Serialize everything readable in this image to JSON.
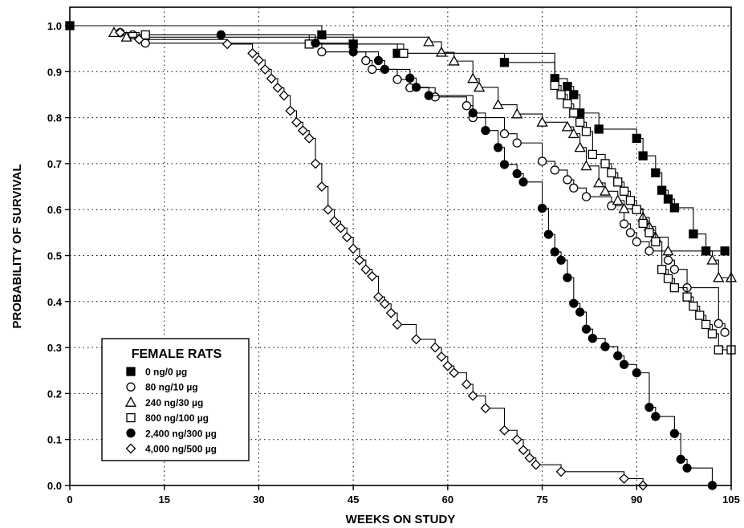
{
  "chart_data": {
    "type": "line",
    "step": true,
    "xlabel": "WEEKS ON STUDY",
    "ylabel": "PROBABILITY OF SURVIVAL",
    "xlim": [
      0,
      105
    ],
    "ylim": [
      0,
      1.0
    ],
    "xticks": [
      0,
      15,
      30,
      45,
      60,
      75,
      90,
      105
    ],
    "yticks": [
      0.0,
      0.1,
      0.2,
      0.3,
      0.4,
      0.5,
      0.6,
      0.7,
      0.8,
      0.9,
      1.0
    ],
    "ytick_labels": [
      "0.0",
      "0.1",
      "0.2",
      "0.3",
      "0.4",
      "0.5",
      "0.6",
      "0.7",
      "0.8",
      "0.9",
      "1.0"
    ],
    "grid": "dotted",
    "legend": {
      "title": "FEMALE RATS",
      "placement": "bottom-left"
    },
    "series": [
      {
        "name": "0 ng/0 µg",
        "marker": "square-filled",
        "points": [
          [
            0,
            1.0
          ],
          [
            40,
            0.98
          ],
          [
            45,
            0.96
          ],
          [
            52,
            0.94
          ],
          [
            69,
            0.92
          ],
          [
            77,
            0.885
          ],
          [
            79,
            0.868
          ],
          [
            80,
            0.85
          ],
          [
            81,
            0.81
          ],
          [
            84,
            0.775
          ],
          [
            90,
            0.755
          ],
          [
            91,
            0.717
          ],
          [
            93,
            0.68
          ],
          [
            94,
            0.642
          ],
          [
            95,
            0.623
          ],
          [
            96,
            0.604
          ],
          [
            99,
            0.547
          ],
          [
            101,
            0.51
          ],
          [
            104,
            0.51
          ]
        ]
      },
      {
        "name": "80 ng/10 µg",
        "marker": "circle-open",
        "points": [
          [
            8,
            0.985
          ],
          [
            10,
            0.98
          ],
          [
            12,
            0.962
          ],
          [
            40,
            0.943
          ],
          [
            47,
            0.924
          ],
          [
            48,
            0.905
          ],
          [
            52,
            0.883
          ],
          [
            54,
            0.865
          ],
          [
            58,
            0.845
          ],
          [
            63,
            0.826
          ],
          [
            64,
            0.8
          ],
          [
            69,
            0.765
          ],
          [
            71,
            0.745
          ],
          [
            75,
            0.705
          ],
          [
            77,
            0.686
          ],
          [
            79,
            0.665
          ],
          [
            80,
            0.647
          ],
          [
            82,
            0.628
          ],
          [
            86,
            0.608
          ],
          [
            88,
            0.569
          ],
          [
            89,
            0.55
          ],
          [
            90,
            0.53
          ],
          [
            92,
            0.51
          ],
          [
            95,
            0.49
          ],
          [
            96,
            0.47
          ],
          [
            98,
            0.43
          ],
          [
            103,
            0.352
          ],
          [
            104,
            0.333
          ]
        ]
      },
      {
        "name": "240 ng/30 µg",
        "marker": "triangle-open",
        "points": [
          [
            7,
            0.985
          ],
          [
            9,
            0.975
          ],
          [
            57,
            0.965
          ],
          [
            59,
            0.942
          ],
          [
            61,
            0.923
          ],
          [
            64,
            0.885
          ],
          [
            65,
            0.866
          ],
          [
            68,
            0.828
          ],
          [
            71,
            0.808
          ],
          [
            75,
            0.79
          ],
          [
            79,
            0.78
          ],
          [
            80,
            0.765
          ],
          [
            81,
            0.735
          ],
          [
            82,
            0.695
          ],
          [
            84,
            0.658
          ],
          [
            85,
            0.64
          ],
          [
            87,
            0.62
          ],
          [
            88,
            0.602
          ],
          [
            91,
            0.583
          ],
          [
            92,
            0.563
          ],
          [
            93,
            0.54
          ],
          [
            95,
            0.51
          ],
          [
            102,
            0.49
          ],
          [
            103,
            0.452
          ],
          [
            105,
            0.452
          ]
        ]
      },
      {
        "name": "800 ng/100 µg",
        "marker": "square-open",
        "points": [
          [
            12,
            0.98
          ],
          [
            38,
            0.96
          ],
          [
            53,
            0.94
          ],
          [
            77,
            0.87
          ],
          [
            78,
            0.85
          ],
          [
            79,
            0.83
          ],
          [
            80,
            0.81
          ],
          [
            81,
            0.79
          ],
          [
            82,
            0.77
          ],
          [
            83,
            0.72
          ],
          [
            85,
            0.7
          ],
          [
            86,
            0.68
          ],
          [
            87,
            0.66
          ],
          [
            88,
            0.64
          ],
          [
            89,
            0.62
          ],
          [
            90,
            0.6
          ],
          [
            91,
            0.57
          ],
          [
            92,
            0.55
          ],
          [
            93,
            0.53
          ],
          [
            94,
            0.47
          ],
          [
            95,
            0.45
          ],
          [
            96,
            0.43
          ],
          [
            98,
            0.41
          ],
          [
            99,
            0.39
          ],
          [
            100,
            0.37
          ],
          [
            101,
            0.35
          ],
          [
            102,
            0.33
          ],
          [
            103,
            0.295
          ],
          [
            105,
            0.295
          ]
        ]
      },
      {
        "name": "2,400 ng/300 µg",
        "marker": "circle-filled",
        "points": [
          [
            24,
            0.98
          ],
          [
            39,
            0.962
          ],
          [
            45,
            0.943
          ],
          [
            49,
            0.924
          ],
          [
            50,
            0.905
          ],
          [
            54,
            0.886
          ],
          [
            55,
            0.866
          ],
          [
            57,
            0.848
          ],
          [
            64,
            0.81
          ],
          [
            66,
            0.772
          ],
          [
            68,
            0.735
          ],
          [
            69,
            0.698
          ],
          [
            71,
            0.678
          ],
          [
            72,
            0.66
          ],
          [
            75,
            0.603
          ],
          [
            76,
            0.546
          ],
          [
            77,
            0.508
          ],
          [
            78,
            0.49
          ],
          [
            79,
            0.452
          ],
          [
            80,
            0.396
          ],
          [
            81,
            0.377
          ],
          [
            82,
            0.34
          ],
          [
            83,
            0.32
          ],
          [
            85,
            0.302
          ],
          [
            87,
            0.282
          ],
          [
            88,
            0.263
          ],
          [
            90,
            0.245
          ],
          [
            92,
            0.17
          ],
          [
            93,
            0.15
          ],
          [
            96,
            0.113
          ],
          [
            97,
            0.057
          ],
          [
            98,
            0.038
          ],
          [
            102,
            0.0
          ]
        ]
      },
      {
        "name": "4,000 ng/500 µg",
        "marker": "diamond-open",
        "points": [
          [
            8,
            0.985
          ],
          [
            11,
            0.97
          ],
          [
            25,
            0.96
          ],
          [
            29,
            0.94
          ],
          [
            30,
            0.925
          ],
          [
            31,
            0.905
          ],
          [
            32,
            0.885
          ],
          [
            33,
            0.865
          ],
          [
            34,
            0.848
          ],
          [
            35,
            0.815
          ],
          [
            36,
            0.79
          ],
          [
            37,
            0.772
          ],
          [
            38,
            0.755
          ],
          [
            39,
            0.7
          ],
          [
            40,
            0.65
          ],
          [
            41,
            0.6
          ],
          [
            42,
            0.575
          ],
          [
            43,
            0.56
          ],
          [
            44,
            0.54
          ],
          [
            45,
            0.515
          ],
          [
            46,
            0.49
          ],
          [
            47,
            0.47
          ],
          [
            48,
            0.455
          ],
          [
            49,
            0.41
          ],
          [
            50,
            0.395
          ],
          [
            51,
            0.375
          ],
          [
            52,
            0.35
          ],
          [
            55,
            0.318
          ],
          [
            58,
            0.3
          ],
          [
            59,
            0.28
          ],
          [
            60,
            0.26
          ],
          [
            61,
            0.245
          ],
          [
            63,
            0.22
          ],
          [
            64,
            0.195
          ],
          [
            66,
            0.168
          ],
          [
            69,
            0.12
          ],
          [
            71,
            0.1
          ],
          [
            72,
            0.077
          ],
          [
            73,
            0.06
          ],
          [
            74,
            0.045
          ],
          [
            78,
            0.03
          ],
          [
            88,
            0.015
          ],
          [
            91,
            0.0
          ]
        ]
      }
    ]
  }
}
